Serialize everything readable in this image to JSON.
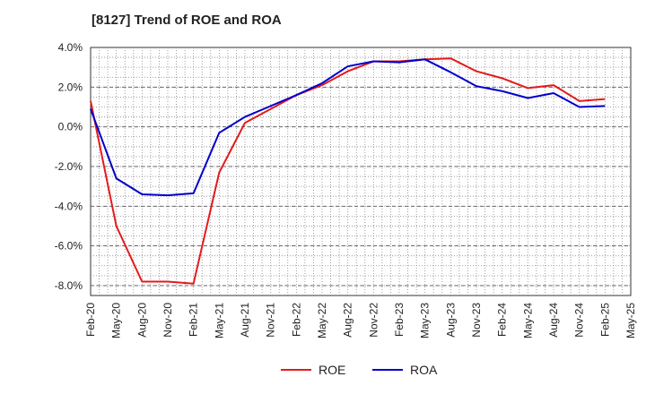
{
  "chart_data": {
    "type": "line",
    "title": "[8127]  Trend of ROE and ROA",
    "xlabel": "",
    "ylabel": "",
    "x": [
      "Feb-20",
      "May-20",
      "Aug-20",
      "Nov-20",
      "Feb-21",
      "May-21",
      "Aug-21",
      "Nov-21",
      "Feb-22",
      "May-22",
      "Aug-22",
      "Nov-22",
      "Feb-23",
      "May-23",
      "Aug-23",
      "Nov-23",
      "Feb-24",
      "May-24",
      "Aug-24",
      "Nov-24",
      "Feb-25",
      "May-25"
    ],
    "ylim": [
      -8.5,
      4.0
    ],
    "yticks": [
      4.0,
      2.0,
      0.0,
      -2.0,
      -4.0,
      -6.0,
      -8.0
    ],
    "ytick_labels": [
      "4.0%",
      "2.0%",
      "0.0%",
      "-2.0%",
      "-4.0%",
      "-6.0%",
      "-8.0%"
    ],
    "grid": true,
    "legend_position": "bottom",
    "series": [
      {
        "name": "ROE",
        "color": "#e41a1c",
        "values": [
          1.3,
          -5.0,
          -7.8,
          -7.8,
          -7.9,
          -2.3,
          0.2,
          0.9,
          1.6,
          2.1,
          2.8,
          3.3,
          3.3,
          3.4,
          3.45,
          2.8,
          2.45,
          1.95,
          2.1,
          1.3,
          1.4,
          null
        ]
      },
      {
        "name": "ROA",
        "color": "#0000cd",
        "values": [
          0.9,
          -2.6,
          -3.4,
          -3.45,
          -3.35,
          -0.3,
          0.5,
          1.05,
          1.6,
          2.2,
          3.05,
          3.3,
          3.25,
          3.4,
          2.75,
          2.05,
          1.8,
          1.45,
          1.7,
          1.0,
          1.05,
          null
        ]
      }
    ]
  }
}
